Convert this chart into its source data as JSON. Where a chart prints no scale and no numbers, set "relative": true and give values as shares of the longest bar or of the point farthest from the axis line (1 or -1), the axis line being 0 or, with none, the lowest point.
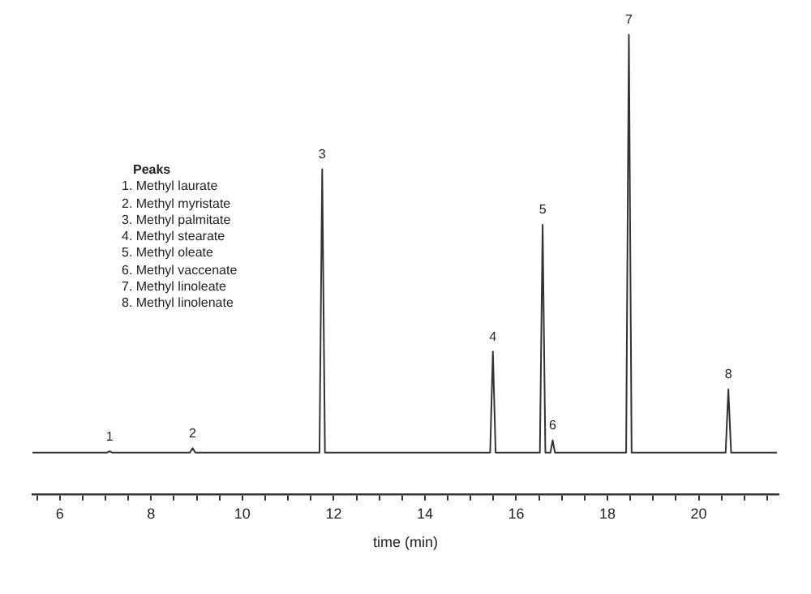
{
  "chart_data": {
    "type": "line",
    "relative": true,
    "xlabel": "time (min)",
    "x": [
      5.4,
      7.03,
      7.09,
      7.15,
      8.85,
      8.91,
      8.97,
      11.69,
      11.75,
      11.81,
      15.43,
      15.49,
      15.55,
      16.52,
      16.58,
      16.64,
      16.75,
      16.8,
      16.85,
      18.41,
      18.47,
      18.53,
      20.59,
      20.65,
      20.71,
      21.7
    ],
    "series": [
      {
        "color": "#333333",
        "values": [
          0.09,
          0.09,
          0.093,
          0.09,
          0.09,
          0.1,
          0.09,
          0.09,
          0.707,
          0.09,
          0.09,
          0.31,
          0.09,
          0.09,
          0.586,
          0.09,
          0.09,
          0.117,
          0.09,
          0.09,
          1,
          0.09,
          0.09,
          0.228,
          0.09,
          0.09
        ]
      }
    ],
    "xlim": [
      5.4,
      21.75
    ],
    "xticks": [
      {
        "value": 5.5,
        "label": null
      },
      6,
      {
        "value": 6.5,
        "label": null
      },
      {
        "value": 7,
        "label": null
      },
      {
        "value": 7.5,
        "label": null
      },
      8,
      {
        "value": 8.5,
        "label": null
      },
      {
        "value": 9,
        "label": null
      },
      {
        "value": 9.5,
        "label": null
      },
      10,
      {
        "value": 10.5,
        "label": null
      },
      {
        "value": 11,
        "label": null
      },
      {
        "value": 11.5,
        "label": null
      },
      12,
      {
        "value": 12.5,
        "label": null
      },
      {
        "value": 13,
        "label": null
      },
      {
        "value": 13.5,
        "label": null
      },
      14,
      {
        "value": 14.5,
        "label": null
      },
      {
        "value": 15,
        "label": null
      },
      {
        "value": 15.5,
        "label": null
      },
      16,
      {
        "value": 16.5,
        "label": null
      },
      {
        "value": 17,
        "label": null
      },
      {
        "value": 17.5,
        "label": null
      },
      18,
      {
        "value": 18.5,
        "label": null
      },
      {
        "value": 19,
        "label": null
      },
      {
        "value": 19.5,
        "label": null
      },
      20,
      {
        "value": 20.5,
        "label": null
      },
      {
        "value": 21,
        "label": null
      },
      {
        "value": 21.5,
        "label": null
      }
    ],
    "grid": false,
    "legend": false,
    "marker": "none",
    "line_style": "solid",
    "annotations": [
      {
        "text": "1",
        "x": 7.09,
        "y": 0.093
      },
      {
        "text": "2",
        "x": 8.91,
        "y": 0.1
      },
      {
        "text": "3",
        "x": 11.75,
        "y": 0.707
      },
      {
        "text": "4",
        "x": 15.49,
        "y": 0.31
      },
      {
        "text": "5",
        "x": 16.58,
        "y": 0.586
      },
      {
        "text": "6",
        "x": 16.8,
        "y": 0.117
      },
      {
        "text": "7",
        "x": 18.47,
        "y": 1
      },
      {
        "text": "8",
        "x": 20.65,
        "y": 0.228
      },
      "Peaks",
      "1. Methyl laurate",
      "2. Methyl myristate",
      "3. Methyl palmitate",
      "4. Methyl stearate",
      "5. Methyl oleate",
      "6. Methyl vaccenate",
      "7. Methyl linoleate",
      "8. Methyl linolenate"
    ]
  }
}
